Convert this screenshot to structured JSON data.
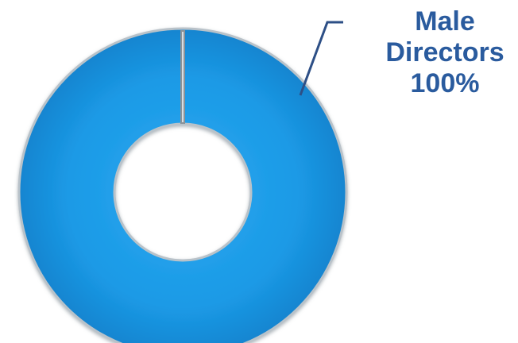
{
  "chart_data": {
    "type": "pie",
    "donut": true,
    "slices": [
      {
        "label": "Male Directors",
        "value": 100,
        "display": "100%"
      }
    ],
    "title": "",
    "legend": "none",
    "colors": {
      "slice": "#1a9ae6",
      "slice_edge": "#1076bf",
      "rim": "#b9c2c9",
      "label_text": "#2a5b9e",
      "leader_line": "#2d4f86"
    }
  }
}
